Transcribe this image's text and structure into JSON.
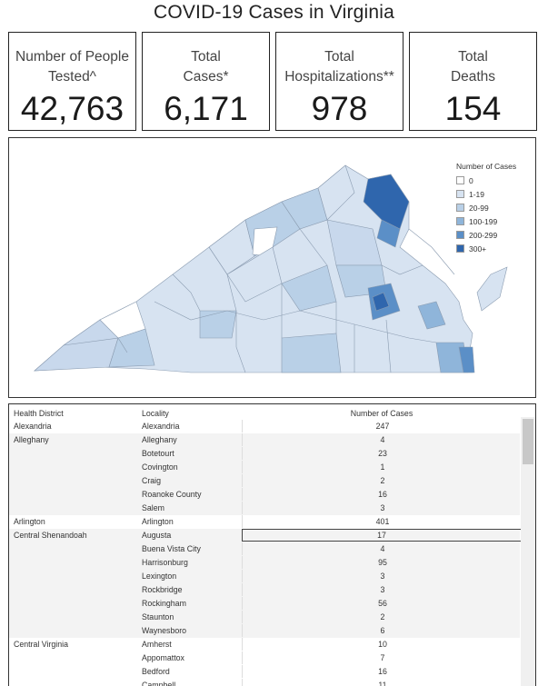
{
  "title": "COVID-19 Cases in Virginia",
  "kpis": [
    {
      "label_line1": "Number of People",
      "label_line2": "Tested^",
      "value": "42,763"
    },
    {
      "label_line1": "Total",
      "label_line2": "Cases*",
      "value": "6,171"
    },
    {
      "label_line1": "Total",
      "label_line2": "Hospitalizations**",
      "value": "978"
    },
    {
      "label_line1": "Total",
      "label_line2": "Deaths",
      "value": "154"
    }
  ],
  "legend": {
    "title": "Number of Cases",
    "items": [
      {
        "label": "0",
        "color": "#ffffff"
      },
      {
        "label": "1-19",
        "color": "#d7e3f1"
      },
      {
        "label": "20-99",
        "color": "#b9d0e7"
      },
      {
        "label": "100-199",
        "color": "#8fb5da"
      },
      {
        "label": "200-299",
        "color": "#5b8fc7"
      },
      {
        "label": "300+",
        "color": "#2f66ad"
      }
    ]
  },
  "table": {
    "headers": {
      "district": "Health District",
      "locality": "Locality",
      "cases": "Number of Cases"
    },
    "rows": [
      {
        "district": "Alexandria",
        "locality": "Alexandria",
        "cases": "247"
      },
      {
        "district": "Alleghany",
        "locality": "Alleghany",
        "cases": "4"
      },
      {
        "district": "",
        "locality": "Botetourt",
        "cases": "23"
      },
      {
        "district": "",
        "locality": "Covington",
        "cases": "1"
      },
      {
        "district": "",
        "locality": "Craig",
        "cases": "2"
      },
      {
        "district": "",
        "locality": "Roanoke County",
        "cases": "16"
      },
      {
        "district": "",
        "locality": "Salem",
        "cases": "3"
      },
      {
        "district": "Arlington",
        "locality": "Arlington",
        "cases": "401"
      },
      {
        "district": "Central Shenandoah",
        "locality": "Augusta",
        "cases": "17"
      },
      {
        "district": "",
        "locality": "Buena Vista City",
        "cases": "4"
      },
      {
        "district": "",
        "locality": "Harrisonburg",
        "cases": "95"
      },
      {
        "district": "",
        "locality": "Lexington",
        "cases": "3"
      },
      {
        "district": "",
        "locality": "Rockbridge",
        "cases": "3"
      },
      {
        "district": "",
        "locality": "Rockingham",
        "cases": "56"
      },
      {
        "district": "",
        "locality": "Staunton",
        "cases": "2"
      },
      {
        "district": "",
        "locality": "Waynesboro",
        "cases": "6"
      },
      {
        "district": "Central Virginia",
        "locality": "Amherst",
        "cases": "10"
      },
      {
        "district": "",
        "locality": "Appomattox",
        "cases": "7"
      },
      {
        "district": "",
        "locality": "Bedford",
        "cases": "16"
      },
      {
        "district": "",
        "locality": "Campbell",
        "cases": "11"
      }
    ]
  }
}
